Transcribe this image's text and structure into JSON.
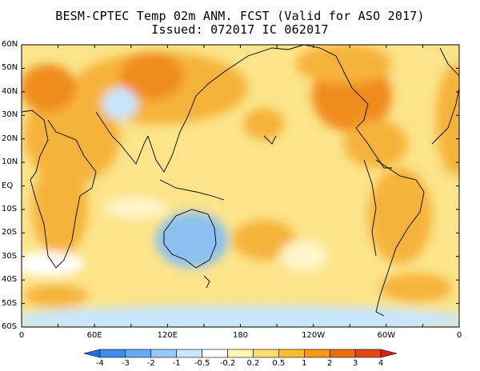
{
  "title_line1": "BESM-CPTEC Temp 02m ANM. FCST  (Valid for ASO 2017)",
  "title_line2": "Issued: 072017 IC 062017",
  "lat_labels": [
    "60N",
    "50N",
    "40N",
    "30N",
    "20N",
    "10N",
    "EQ",
    "10S",
    "20S",
    "30S",
    "40S",
    "50S",
    "60S"
  ],
  "lon_labels": [
    "0",
    "60E",
    "120E",
    "180",
    "120W",
    "60W",
    "0"
  ],
  "colorbar": {
    "labels": [
      "-4",
      "-3",
      "-2",
      "-1",
      "-0.5",
      "-0.2",
      "0.2",
      "0.5",
      "1",
      "2",
      "3",
      "4"
    ],
    "colors": [
      "#1e6ee6",
      "#3c8cf0",
      "#64aaf5",
      "#96c8fa",
      "#c8e6ff",
      "#ffffff",
      "#fff5b4",
      "#ffdc6e",
      "#ffbe32",
      "#f59a14",
      "#eb6e0a",
      "#e64614",
      "#d22314"
    ]
  },
  "colors": {
    "ocean_base": "#fbe48a",
    "land_warm": "#f6b33a",
    "land_hot": "#f08c1e",
    "cool_blue": "#8cc0f0",
    "pale": "#ffffff"
  }
}
